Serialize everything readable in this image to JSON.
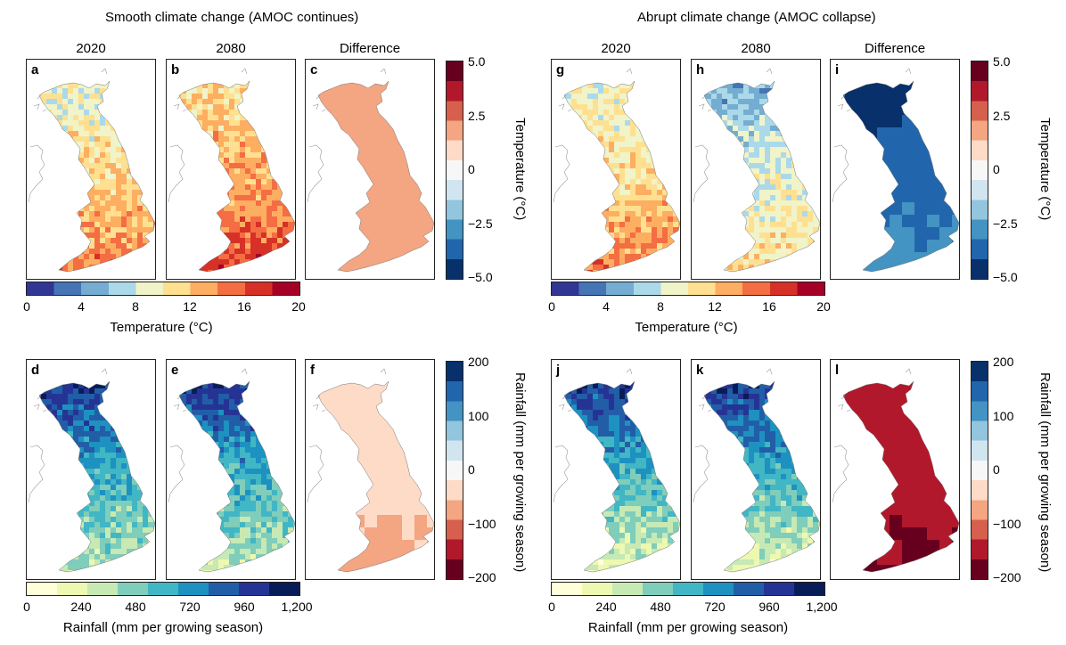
{
  "left_title": "Smooth climate change (AMOC continues)",
  "right_title": "Abrupt climate change (AMOC collapse)",
  "column_headers": [
    "2020",
    "2080",
    "Difference"
  ],
  "panels": [
    {
      "label": "a",
      "scheme": "temp",
      "smooth": false,
      "ramp": [
        4,
        5,
        7
      ],
      "base": 6.5
    },
    {
      "label": "b",
      "scheme": "temp",
      "smooth": false,
      "ramp": [
        5,
        6,
        8
      ],
      "base": 7.5
    },
    {
      "label": "c",
      "scheme": "diffT",
      "smooth": true,
      "ramp": [
        7,
        7,
        7
      ],
      "base": 7
    },
    {
      "label": "d",
      "scheme": "rain",
      "smooth": false,
      "ramp": [
        7,
        4,
        2
      ],
      "base": 2.5
    },
    {
      "label": "e",
      "scheme": "rain",
      "smooth": false,
      "ramp": [
        7,
        4,
        2
      ],
      "base": 2.3
    },
    {
      "label": "f",
      "scheme": "diffR",
      "smooth": true,
      "ramp": [
        4,
        4,
        3
      ],
      "base": 3.3
    },
    {
      "label": "g",
      "scheme": "temp",
      "smooth": false,
      "ramp": [
        4,
        5,
        7
      ],
      "base": 6.5
    },
    {
      "label": "h",
      "scheme": "temp",
      "smooth": false,
      "ramp": [
        2,
        4,
        5
      ],
      "base": 4.3
    },
    {
      "label": "i",
      "scheme": "diffT",
      "smooth": true,
      "ramp": [
        0,
        1,
        2
      ],
      "base": 1
    },
    {
      "label": "j",
      "scheme": "rain",
      "smooth": false,
      "ramp": [
        7,
        4,
        1
      ],
      "base": 1.8
    },
    {
      "label": "k",
      "scheme": "rain",
      "smooth": false,
      "ramp": [
        7,
        4,
        1
      ],
      "base": 1.2
    },
    {
      "label": "l",
      "scheme": "diffR",
      "smooth": true,
      "ramp": [
        1,
        1,
        0
      ],
      "base": 0.6
    }
  ],
  "temp_diff_scale": {
    "title": "Temperature (°C)",
    "ticks": [
      "5.0",
      "2.5",
      "0",
      "−2.5",
      "−5.0"
    ]
  },
  "rain_diff_scale": {
    "title": "Rainfall (mm per growing season)",
    "ticks": [
      "200",
      "100",
      "0",
      "−100",
      "−200"
    ]
  },
  "temp_scale": {
    "title": "Temperature (°C)",
    "ticks": [
      "0",
      "4",
      "8",
      "12",
      "16",
      "20"
    ]
  },
  "rain_scale": {
    "title": "Rainfall (mm per growing season)",
    "ticks": [
      "0",
      "240",
      "480",
      "720",
      "960",
      "1,200"
    ]
  },
  "colors": {
    "temp": [
      "#313695",
      "#4575b4",
      "#74add1",
      "#abd9e9",
      "#f0f4c8",
      "#fee090",
      "#fdae61",
      "#f46d43",
      "#d73027",
      "#a50026"
    ],
    "rain": [
      "#ffffd9",
      "#edf8b1",
      "#c7e9b4",
      "#7fcdbb",
      "#41b6c4",
      "#1d91c0",
      "#225ea8",
      "#253494",
      "#081d58"
    ],
    "diffT": [
      "#08306b",
      "#2166ac",
      "#4393c3",
      "#92c5de",
      "#d1e5f0",
      "#f7f7f7",
      "#fddbc7",
      "#f4a582",
      "#d6604d",
      "#b2182b",
      "#67001f"
    ],
    "diffR": [
      "#67001f",
      "#b2182b",
      "#d6604d",
      "#f4a582",
      "#fddbc7",
      "#f7f7f7",
      "#d1e5f0",
      "#92c5de",
      "#4393c3",
      "#2166ac",
      "#08306b"
    ]
  }
}
